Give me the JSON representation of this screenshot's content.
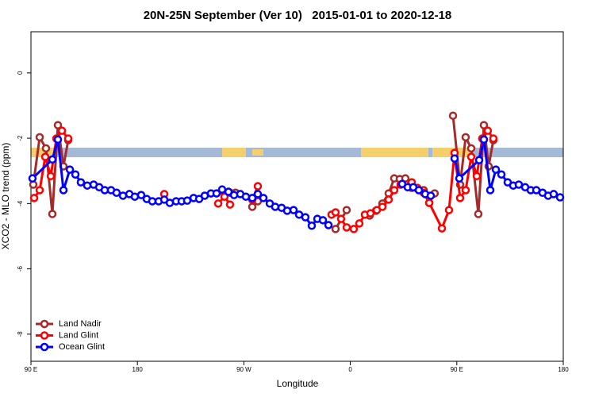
{
  "chart_data": {
    "type": "line",
    "title": "20N-25N September (Ver 10)   2015-01-01 to 2020-12-18",
    "x_label": "Longitude",
    "y_label": "XCO2 - MLO trend (ppm)",
    "xlim": [
      90,
      540
    ],
    "ylim": [
      -8.83,
      1.26
    ],
    "xticks": [
      {
        "value": 90,
        "label": "90 E"
      },
      180,
      {
        "value": 270,
        "label": "90 W"
      },
      {
        "value": 360,
        "label": "0"
      },
      {
        "value": 450,
        "label": "90 E"
      },
      {
        "value": 540,
        "label": "180"
      }
    ],
    "yticks": [
      0,
      -2,
      -4,
      -6,
      -8
    ],
    "legend": "bottom-left",
    "series": [
      {
        "name": "Land Nadir",
        "color": "#a52a2a",
        "x": [
          92.0,
          97.4,
          102.7,
          108.1,
          112.8,
          117.5,
          121.5,
          null,
          253.6,
          258.3,
          263.0,
          null,
          277.1,
          281.8,
          null,
          347.5,
          356.9,
          null,
          376.3,
          381.7,
          387.1,
          392.4,
          397.1,
          401.8,
          406.5,
          411.9,
          416.6,
          422.0,
          426.7,
          431.3,
          null,
          446.8,
          452.8,
          457.5,
          462.2,
          468.2,
          472.9,
          476.9,
          480.9
        ],
        "values": [
          -3.42,
          -1.97,
          -2.31,
          -4.32,
          -1.6,
          -2.86,
          -2.06,
          null,
          -3.67,
          -3.67,
          -3.67,
          null,
          -4.1,
          -3.93,
          null,
          -4.78,
          -4.2,
          null,
          -4.37,
          -4.22,
          -4.0,
          -3.69,
          -3.23,
          -3.25,
          -3.23,
          -3.52,
          -3.54,
          -3.59,
          -3.98,
          -3.69,
          null,
          -1.31,
          -3.42,
          -1.97,
          -2.31,
          -4.32,
          -1.6,
          -2.86,
          -2.06
        ]
      },
      {
        "name": "Land Glint",
        "color": "#ff0000",
        "x": [
          92.7,
          97.4,
          102.1,
          106.8,
          111.5,
          116.2,
          121.5,
          null,
          202.7,
          null,
          248.3,
          253.6,
          258.3,
          null,
          277.1,
          281.8,
          null,
          344.1,
          347.5,
          352.2,
          356.9,
          362.9,
          367.6,
          372.3,
          377.0,
          382.4,
          387.1,
          392.4,
          397.1,
          402.5,
          407.2,
          411.9,
          416.6,
          422.0,
          426.7,
          437.4,
          443.4,
          448.1,
          452.8,
          457.5,
          462.2,
          466.9,
          471.5,
          476.2,
          480.9
        ],
        "values": [
          -3.83,
          -3.59,
          -2.57,
          -3.16,
          -2.01,
          -1.77,
          -2.01,
          null,
          -3.71,
          null,
          -4.0,
          -3.79,
          -4.03,
          null,
          -3.88,
          -3.47,
          null,
          -4.34,
          -4.27,
          -4.47,
          -4.73,
          -4.78,
          -4.61,
          -4.34,
          -4.3,
          -4.2,
          -4.1,
          -3.88,
          -3.59,
          -3.42,
          -3.42,
          -3.35,
          -3.52,
          -3.67,
          -3.98,
          -4.76,
          -4.2,
          -2.45,
          -3.83,
          -3.59,
          -2.57,
          -3.16,
          -2.01,
          -1.77,
          -2.01
        ]
      },
      {
        "name": "Ocean Glint",
        "color": "#0000ff",
        "x": [
          91.3,
          108.1,
          112.8,
          117.5,
          122.9,
          127.6,
          132.2,
          137.6,
          143.0,
          147.7,
          152.4,
          157.7,
          162.4,
          167.8,
          173.2,
          177.8,
          183.2,
          187.9,
          192.6,
          198.0,
          202.7,
          207.4,
          212.7,
          217.4,
          222.1,
          227.5,
          232.2,
          236.9,
          242.2,
          246.9,
          251.6,
          257.0,
          261.7,
          267.0,
          271.7,
          277.1,
          281.8,
          286.5,
          291.9,
          296.5,
          301.9,
          306.6,
          312.0,
          316.7,
          322.0,
          327.4,
          332.1,
          336.8,
          341.5,
          null,
          403.8,
          408.5,
          413.2,
          417.9,
          423.3,
          428.0,
          null,
          448.1,
          452.1,
          468.9,
          472.9,
          478.3,
          483.0,
          487.7,
          493.0,
          497.7,
          502.4,
          507.8,
          512.5,
          517.2,
          522.5,
          527.2,
          531.9,
          537.3
        ],
        "values": [
          -3.23,
          -2.65,
          -2.04,
          -3.59,
          -2.96,
          -3.11,
          -3.35,
          -3.45,
          -3.42,
          -3.5,
          -3.59,
          -3.59,
          -3.67,
          -3.76,
          -3.71,
          -3.79,
          -3.74,
          -3.86,
          -3.93,
          -3.93,
          -3.88,
          -3.98,
          -3.93,
          -3.93,
          -3.91,
          -3.83,
          -3.86,
          -3.76,
          -3.69,
          -3.69,
          -3.57,
          -3.64,
          -3.74,
          -3.71,
          -3.79,
          -3.83,
          -3.71,
          -3.83,
          -4.0,
          -4.1,
          -4.13,
          -4.22,
          -4.2,
          -4.34,
          -4.42,
          -4.68,
          -4.47,
          -4.51,
          -4.66,
          null,
          -3.4,
          -3.5,
          -3.5,
          -3.59,
          -3.71,
          -3.76,
          null,
          -2.62,
          -3.23,
          -2.67,
          -2.04,
          -3.59,
          -2.96,
          -3.11,
          -3.35,
          -3.45,
          -3.42,
          -3.5,
          -3.59,
          -3.59,
          -3.67,
          -3.76,
          -3.71,
          -3.81
        ]
      }
    ]
  }
}
